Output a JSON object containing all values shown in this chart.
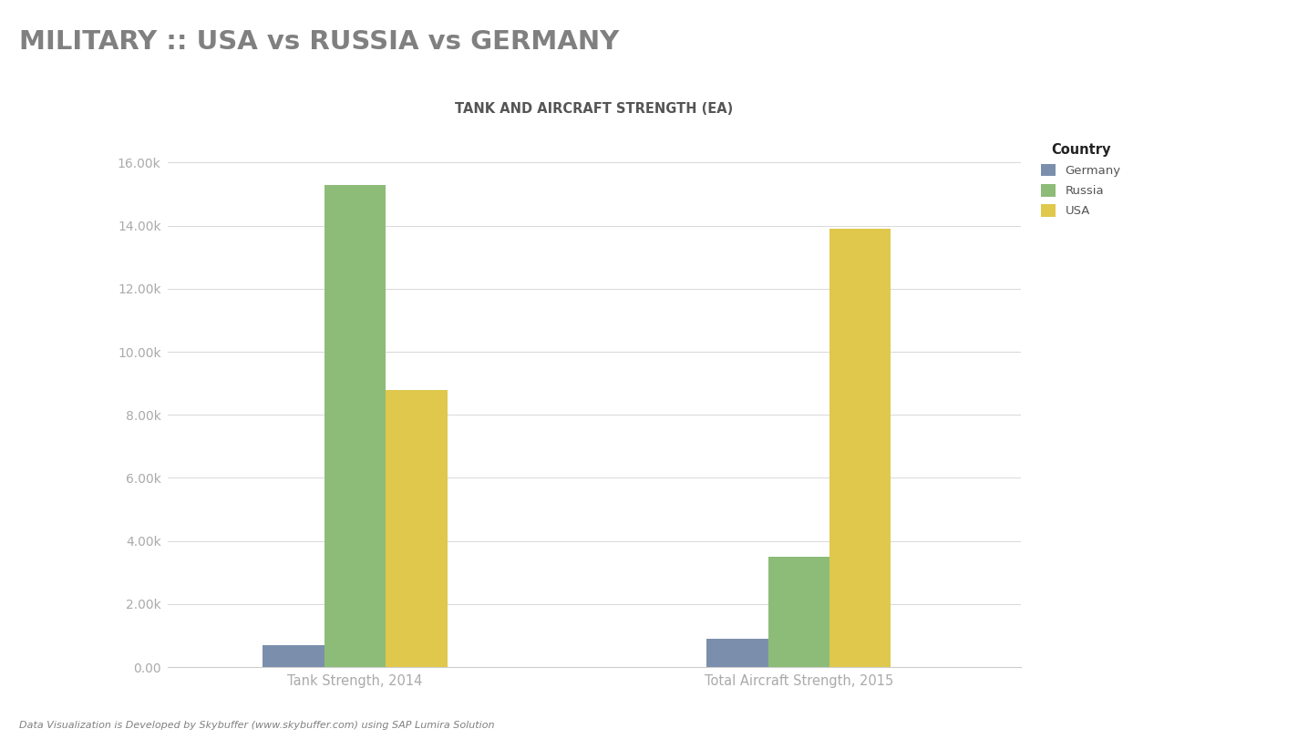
{
  "title": "MILITARY :: USA vs RUSSIA vs GERMANY",
  "subtitle": "TANK AND AIRCRAFT STRENGTH (EA)",
  "footer": "Data Visualization is Developed by Skybuffer (www.skybuffer.com) using SAP Lumira Solution",
  "categories": [
    "Tank Strength, 2014",
    "Total Aircraft Strength, 2015"
  ],
  "countries": [
    "Germany",
    "Russia",
    "USA"
  ],
  "colors": {
    "Germany": "#7b8fad",
    "Russia": "#8dbc78",
    "USA": "#dfc84b"
  },
  "values": {
    "Germany": [
      700,
      900
    ],
    "Russia": [
      15300,
      3500
    ],
    "USA": [
      8800,
      13900
    ]
  },
  "ylim": [
    0,
    17000
  ],
  "yticks": [
    0,
    2000,
    4000,
    6000,
    8000,
    10000,
    12000,
    14000,
    16000
  ],
  "background_color": "#ffffff",
  "title_color": "#808080",
  "subtitle_color": "#555555",
  "axis_color": "#aaaaaa",
  "tick_color": "#aaaaaa",
  "footer_color": "#808080",
  "legend_title": "Country",
  "bar_width": 0.18,
  "group_centers": [
    0.55,
    1.85
  ],
  "xlim": [
    0.0,
    2.5
  ]
}
